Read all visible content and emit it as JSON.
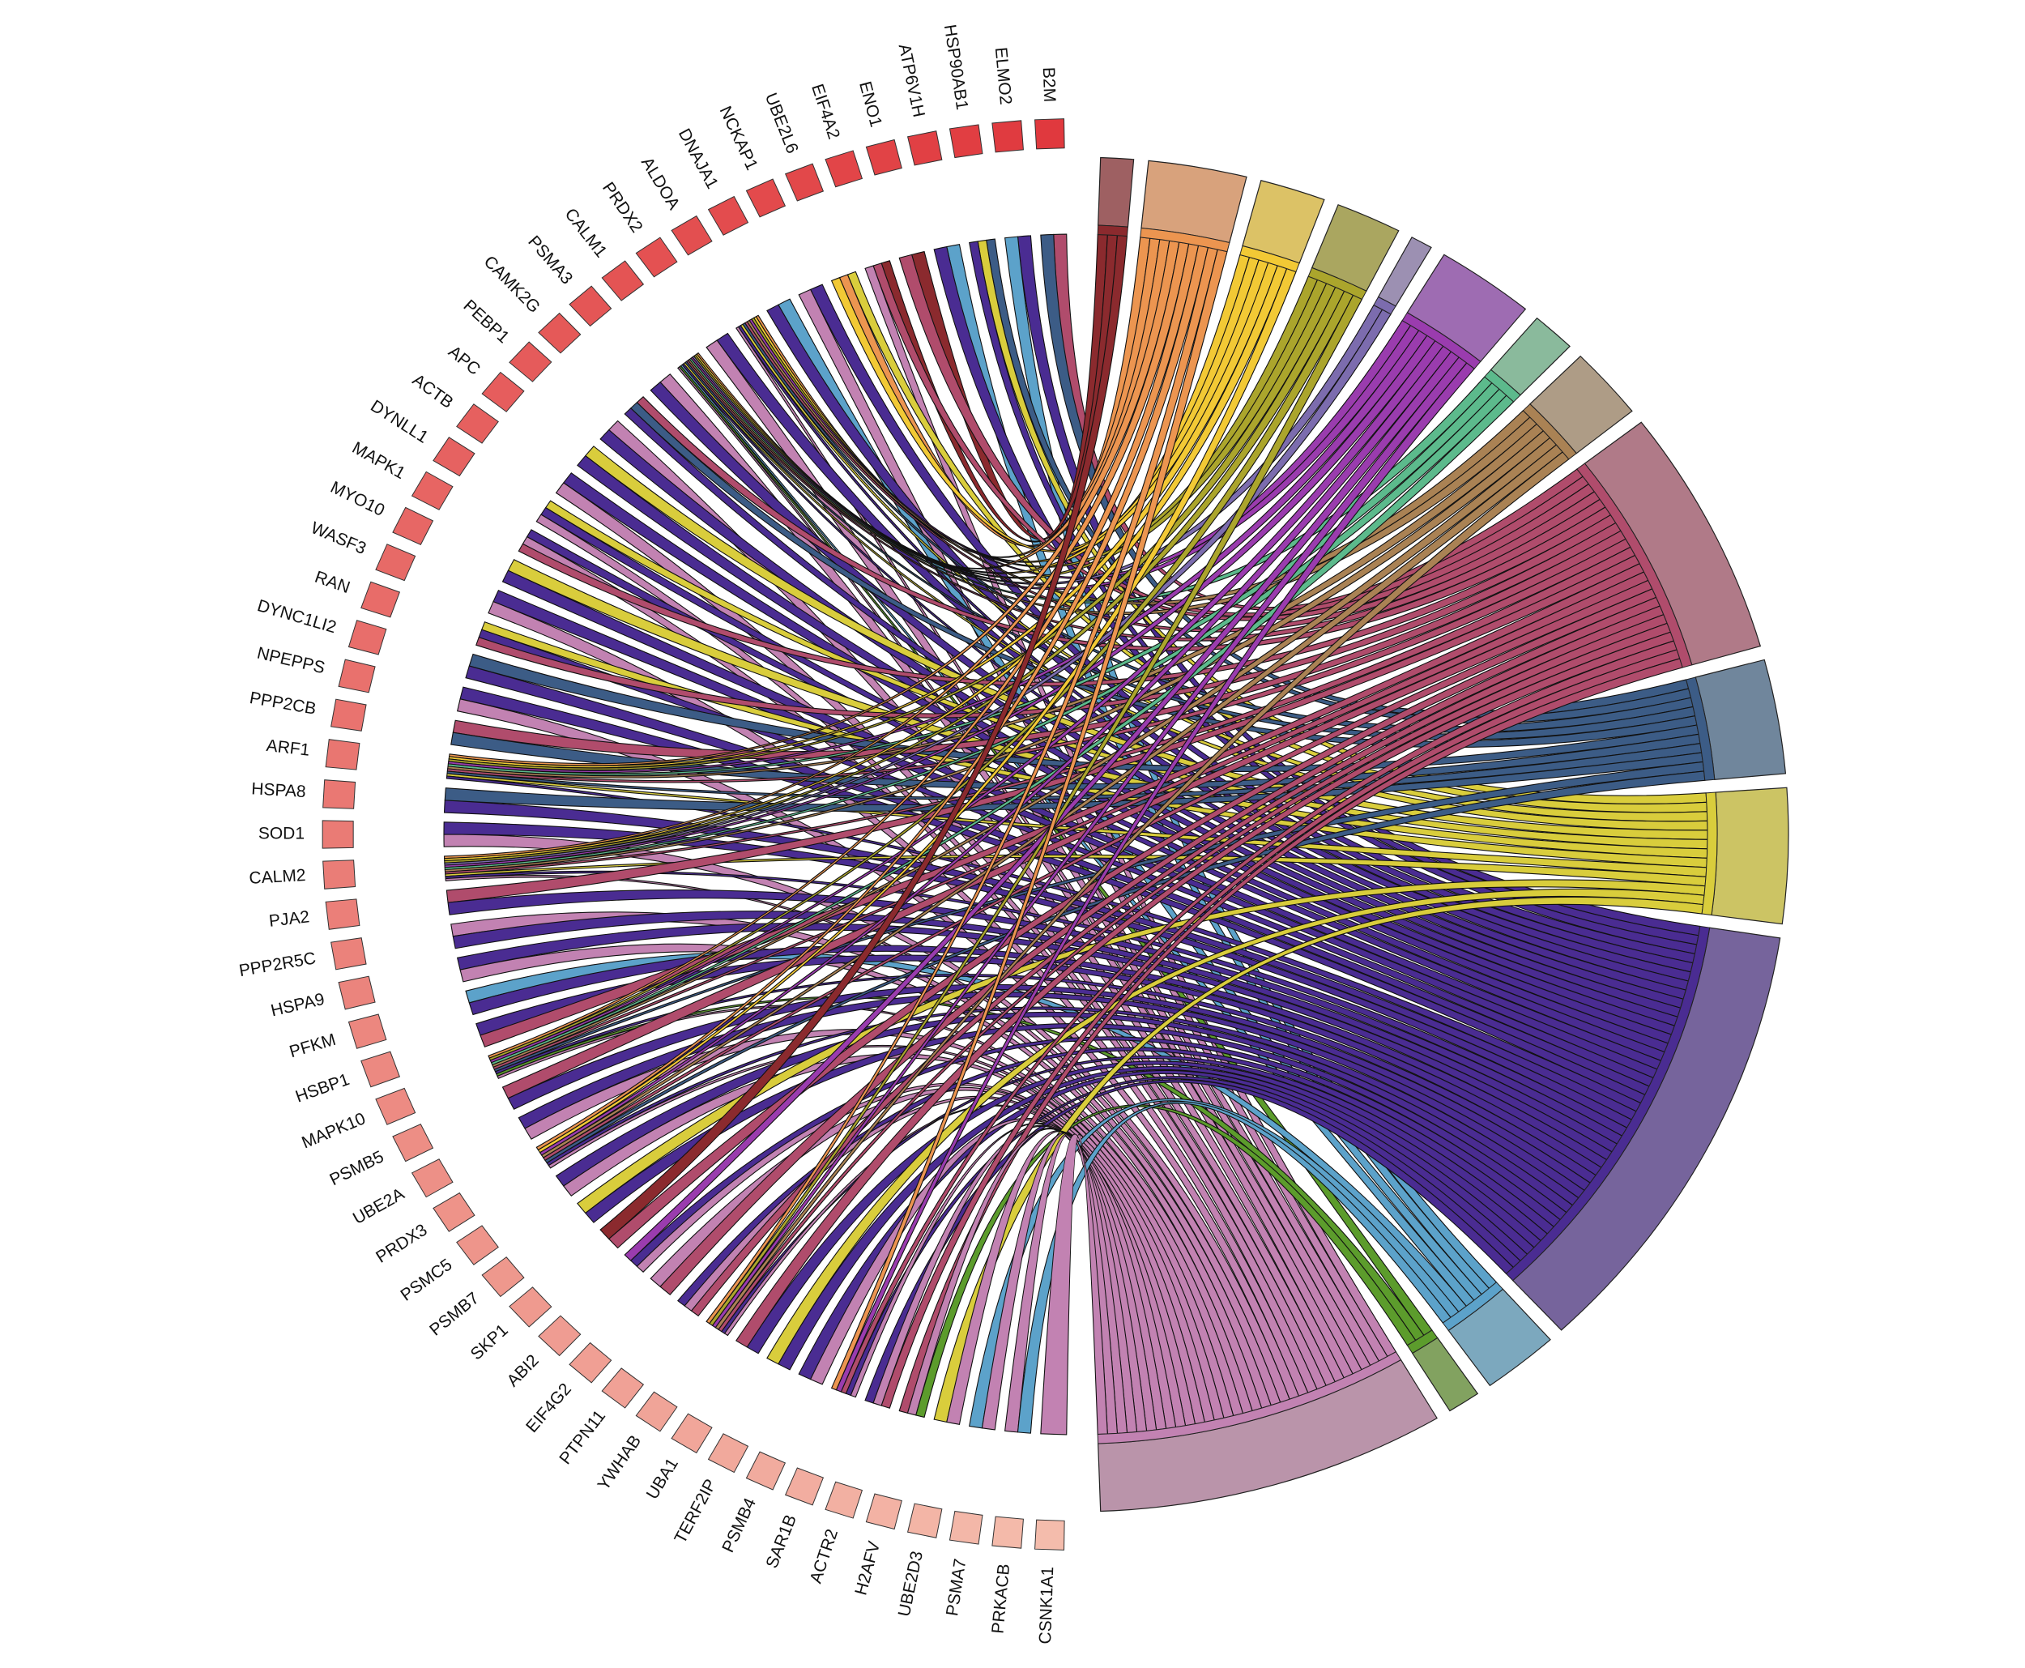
{
  "chart_data": {
    "type": "chord",
    "gene_color_scale": [
      "#e0393e",
      "#f4bcac"
    ],
    "terms": [
      {
        "color": "#8b2a2e",
        "fill": "#9e6062"
      },
      {
        "color": "#ec9550",
        "fill": "#d8a27c"
      },
      {
        "color": "#f2c935",
        "fill": "#dcc266"
      },
      {
        "color": "#aba52c",
        "fill": "#aaa660"
      },
      {
        "color": "#7c6cae",
        "fill": "#9c90b2"
      },
      {
        "color": "#9a3cae",
        "fill": "#9e6cb2"
      },
      {
        "color": "#5cba8c",
        "fill": "#8aba9c"
      },
      {
        "color": "#aa8254",
        "fill": "#ae9c86"
      },
      {
        "color": "#b04c6c",
        "fill": "#b07a88"
      },
      {
        "color": "#3c5c86",
        "fill": "#70869c"
      },
      {
        "color": "#d9cd3c",
        "fill": "#ccc464"
      },
      {
        "color": "#4a2c92",
        "fill": "#76649c"
      },
      {
        "color": "#5ca2ca",
        "fill": "#7ca8be"
      },
      {
        "color": "#5c9c2c",
        "fill": "#82a260"
      },
      {
        "color": "#c282b2",
        "fill": "#ba94aa"
      }
    ],
    "genes": [
      {
        "label": "B2M",
        "terms": [
          8,
          9
        ]
      },
      {
        "label": "ELMO2",
        "terms": [
          11,
          12
        ]
      },
      {
        "label": "HSP90AB1",
        "terms": [
          9,
          10,
          11
        ]
      },
      {
        "label": "ATP6V1H",
        "terms": [
          12,
          11
        ]
      },
      {
        "label": "ENO1",
        "terms": [
          0,
          8
        ]
      },
      {
        "label": "EIF4A2",
        "terms": [
          0,
          8,
          14
        ]
      },
      {
        "label": "UBE2L6",
        "terms": [
          10,
          1,
          2
        ]
      },
      {
        "label": "NCKAP1",
        "terms": [
          11,
          14
        ]
      },
      {
        "label": "DNAJA1",
        "terms": [
          12,
          11
        ]
      },
      {
        "label": "ALDOA",
        "terms": [
          1,
          2,
          3,
          5,
          7,
          8,
          9,
          10,
          11,
          14
        ]
      },
      {
        "label": "PRDX2",
        "terms": [
          11,
          14
        ]
      },
      {
        "label": "CALM1",
        "terms": [
          1,
          2,
          3,
          4,
          5,
          6,
          7,
          8,
          9,
          10,
          11,
          12,
          13,
          14
        ]
      },
      {
        "label": "PSMA3",
        "terms": [
          14,
          11
        ]
      },
      {
        "label": "CAMK2G",
        "terms": [
          8,
          9,
          11
        ]
      },
      {
        "label": "PEBP1",
        "terms": [
          14,
          11
        ]
      },
      {
        "label": "APC",
        "terms": [
          10,
          11
        ]
      },
      {
        "label": "ACTB",
        "terms": [
          11,
          14
        ]
      },
      {
        "label": "DYNLL1",
        "terms": [
          10,
          11,
          14
        ]
      },
      {
        "label": "MAPK1",
        "terms": [
          11,
          14,
          8
        ]
      },
      {
        "label": "MYO10",
        "terms": [
          10,
          11
        ]
      },
      {
        "label": "WASF3",
        "terms": [
          11,
          14
        ]
      },
      {
        "label": "RAN",
        "terms": [
          10,
          11,
          8
        ]
      },
      {
        "label": "DYNC1LI2",
        "terms": [
          9,
          11
        ]
      },
      {
        "label": "NPEPPS",
        "terms": [
          11,
          14
        ]
      },
      {
        "label": "PPP2CB",
        "terms": [
          8,
          9
        ]
      },
      {
        "label": "ARF1",
        "terms": [
          1,
          2,
          3,
          5,
          6,
          7,
          8,
          9,
          10,
          11
        ]
      },
      {
        "label": "HSPA8",
        "terms": [
          9,
          11
        ]
      },
      {
        "label": "SOD1",
        "terms": [
          11,
          14
        ]
      },
      {
        "label": "CALM2",
        "terms": [
          1,
          2,
          3,
          4,
          5,
          6,
          7,
          8,
          10,
          11,
          14
        ]
      },
      {
        "label": "PJA2",
        "terms": [
          8,
          11
        ]
      },
      {
        "label": "PPP2R5C",
        "terms": [
          14,
          11
        ]
      },
      {
        "label": "HSPA9",
        "terms": [
          11,
          14
        ]
      },
      {
        "label": "PFKM",
        "terms": [
          12,
          11
        ]
      },
      {
        "label": "HSBP1",
        "terms": [
          11,
          8
        ]
      },
      {
        "label": "MAPK10",
        "terms": [
          1,
          3,
          5,
          6,
          7,
          8,
          9,
          11,
          13,
          14
        ]
      },
      {
        "label": "PSMB5",
        "terms": [
          8,
          11
        ]
      },
      {
        "label": "UBE2A",
        "terms": [
          11,
          14
        ]
      },
      {
        "label": "PRDX3",
        "terms": [
          1,
          2,
          5,
          7,
          8,
          9,
          11,
          14
        ]
      },
      {
        "label": "PSMC5",
        "terms": [
          11,
          14
        ]
      },
      {
        "label": "PSMB7",
        "terms": [
          10,
          11
        ]
      },
      {
        "label": "SKP1",
        "terms": [
          0,
          8
        ]
      },
      {
        "label": "ABI2",
        "terms": [
          5,
          11,
          14
        ]
      },
      {
        "label": "EIF4G2",
        "terms": [
          14,
          8
        ]
      },
      {
        "label": "PTPN11",
        "terms": [
          11,
          14,
          8
        ]
      },
      {
        "label": "YWHAB",
        "terms": [
          1,
          3,
          5,
          7,
          8,
          11,
          14
        ]
      },
      {
        "label": "UBA1",
        "terms": [
          8,
          11
        ]
      },
      {
        "label": "TERF2IP",
        "terms": [
          10,
          11
        ]
      },
      {
        "label": "PSMB4",
        "terms": [
          11,
          14
        ]
      },
      {
        "label": "SAR1B",
        "terms": [
          1,
          5,
          8,
          11,
          14
        ]
      },
      {
        "label": "ACTR2",
        "terms": [
          11,
          14,
          8
        ]
      },
      {
        "label": "H2AFV",
        "terms": [
          8,
          14,
          13
        ]
      },
      {
        "label": "UBE2D3",
        "terms": [
          10,
          14
        ]
      },
      {
        "label": "PSMA7",
        "terms": [
          12,
          14
        ]
      },
      {
        "label": "PRKACB",
        "terms": [
          14,
          12
        ]
      },
      {
        "label": "CSNK1A1",
        "terms": [
          14
        ]
      }
    ]
  }
}
